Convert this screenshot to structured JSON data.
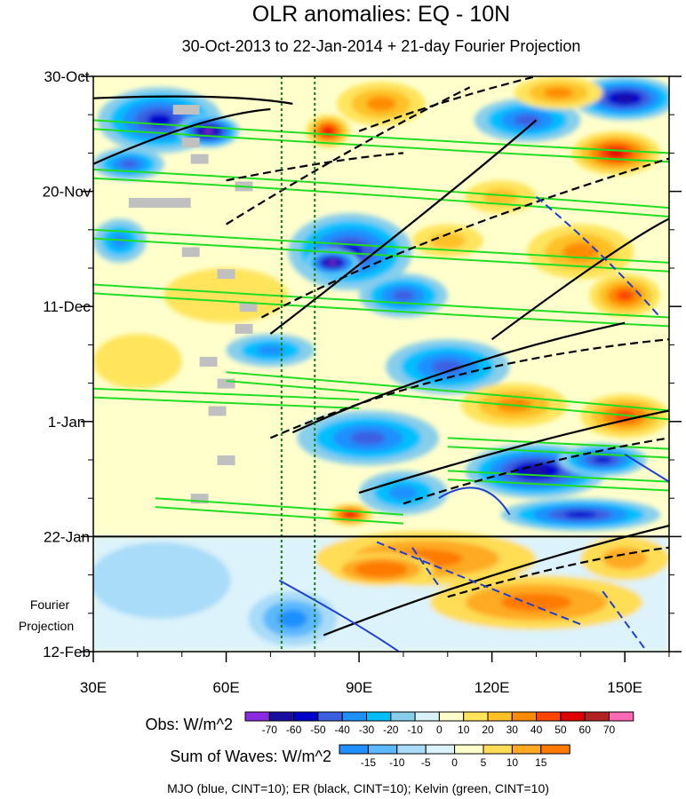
{
  "chart_data": {
    "type": "heatmap",
    "title": "OLR anomalies: EQ - 10N",
    "subtitle": "30-Oct-2013 to 22-Jan-2014 + 21-day Fourier Projection",
    "x_ticks": [
      {
        "value": 30,
        "label": "30E"
      },
      {
        "value": 60,
        "label": "60E"
      },
      {
        "value": 90,
        "label": "90E"
      },
      {
        "value": 120,
        "label": "120E"
      },
      {
        "value": 150,
        "label": "150E"
      }
    ],
    "xlim": [
      30,
      160
    ],
    "y_ticks": [
      {
        "day": 0,
        "label": "30-Oct"
      },
      {
        "day": 21,
        "label": "20-Nov"
      },
      {
        "day": 42,
        "label": "11-Dec"
      },
      {
        "day": 63,
        "label": "1-Jan"
      },
      {
        "day": 84,
        "label": "22-Jan"
      },
      {
        "day": 105,
        "label": "12-Feb"
      }
    ],
    "observation_end_day": 84,
    "projection_label_line1": "Fourier",
    "projection_label_line2": "Projection",
    "reference_lines_longitude": [
      72.5,
      80
    ],
    "obs_colorbar": {
      "label": "Obs: W/m^2",
      "levels": [
        "-70",
        "-60",
        "-50",
        "-40",
        "-30",
        "-20",
        "-10",
        "0",
        "10",
        "20",
        "30",
        "40",
        "50",
        "60",
        "70"
      ],
      "colors": [
        "#8a2be2",
        "#1a0ea0",
        "#0000cd",
        "#3b5fe0",
        "#1e90ff",
        "#00bfff",
        "#87ceeb",
        "#d8f3f8",
        "#ffffcc",
        "#ffe45c",
        "#ffc125",
        "#ff8c00",
        "#ff4500",
        "#e00000",
        "#b22222",
        "#ff69b4"
      ]
    },
    "waves_colorbar": {
      "label": "Sum of Waves: W/m^2",
      "levels": [
        "-15",
        "-10",
        "-5",
        "0",
        "5",
        "10",
        "15"
      ],
      "colors": [
        "#1e90ff",
        "#5cb8ff",
        "#a8dcf8",
        "#dcf3fb",
        "#ffffcc",
        "#ffdd55",
        "#ffaa22",
        "#ff7a00"
      ]
    },
    "footer": "MJO (blue, CINT=10); ER (black, CINT=10); Kelvin (green, CINT=10)",
    "contour_legend": [
      {
        "wave": "MJO",
        "color": "#1f3fd0"
      },
      {
        "wave": "ER",
        "color": "#000000"
      },
      {
        "wave": "Kelvin",
        "color": "#22dd22"
      }
    ],
    "obs_features": [
      {
        "lon": 45,
        "day": 8,
        "rx": 14,
        "ry": 6,
        "level": -50
      },
      {
        "lon": 56,
        "day": 10,
        "rx": 7,
        "ry": 3,
        "level": -70
      },
      {
        "lon": 38,
        "day": 16,
        "rx": 8,
        "ry": 3,
        "level": -40
      },
      {
        "lon": 88,
        "day": 32,
        "rx": 14,
        "ry": 7,
        "level": -50
      },
      {
        "lon": 84,
        "day": 34,
        "rx": 6,
        "ry": 2.5,
        "level": -70
      },
      {
        "lon": 100,
        "day": 40,
        "rx": 10,
        "ry": 4,
        "level": -40
      },
      {
        "lon": 70,
        "day": 50,
        "rx": 10,
        "ry": 3,
        "level": -30
      },
      {
        "lon": 110,
        "day": 53,
        "rx": 14,
        "ry": 5,
        "level": -40
      },
      {
        "lon": 92,
        "day": 66,
        "rx": 16,
        "ry": 5,
        "level": -40
      },
      {
        "lon": 130,
        "day": 72,
        "rx": 16,
        "ry": 5,
        "level": -60
      },
      {
        "lon": 145,
        "day": 70,
        "rx": 10,
        "ry": 3,
        "level": -50
      },
      {
        "lon": 140,
        "day": 80,
        "rx": 18,
        "ry": 3,
        "level": -50
      },
      {
        "lon": 100,
        "day": 76,
        "rx": 10,
        "ry": 4,
        "level": -30
      },
      {
        "lon": 150,
        "day": 4,
        "rx": 12,
        "ry": 4,
        "level": -60
      },
      {
        "lon": 128,
        "day": 8,
        "rx": 12,
        "ry": 4,
        "level": -40
      },
      {
        "lon": 36,
        "day": 30,
        "rx": 6,
        "ry": 4,
        "level": -30
      },
      {
        "lon": 95,
        "day": 5,
        "rx": 10,
        "ry": 4,
        "level": 30
      },
      {
        "lon": 83,
        "day": 10,
        "rx": 5,
        "ry": 3,
        "level": 50
      },
      {
        "lon": 148,
        "day": 14,
        "rx": 10,
        "ry": 4,
        "level": 50
      },
      {
        "lon": 140,
        "day": 32,
        "rx": 12,
        "ry": 5,
        "level": 30
      },
      {
        "lon": 150,
        "day": 40,
        "rx": 8,
        "ry": 4,
        "level": 40
      },
      {
        "lon": 125,
        "day": 60,
        "rx": 12,
        "ry": 4,
        "level": 30
      },
      {
        "lon": 150,
        "day": 62,
        "rx": 10,
        "ry": 4,
        "level": 40
      },
      {
        "lon": 88,
        "day": 80,
        "rx": 5,
        "ry": 2,
        "level": 50
      },
      {
        "lon": 122,
        "day": 22,
        "rx": 8,
        "ry": 3,
        "level": 20
      },
      {
        "lon": 60,
        "day": 40,
        "rx": 14,
        "ry": 5,
        "level": 10
      },
      {
        "lon": 40,
        "day": 52,
        "rx": 10,
        "ry": 5,
        "level": 10
      },
      {
        "lon": 135,
        "day": 3,
        "rx": 10,
        "ry": 3,
        "level": 30
      },
      {
        "lon": 110,
        "day": 30,
        "rx": 8,
        "ry": 3,
        "level": 20
      }
    ],
    "proj_features": [
      {
        "lon": 105,
        "day": 88,
        "rx": 25,
        "ry": 5,
        "level": 15
      },
      {
        "lon": 130,
        "day": 96,
        "rx": 24,
        "ry": 5,
        "level": 15
      },
      {
        "lon": 95,
        "day": 90,
        "rx": 12,
        "ry": 3,
        "level": 20
      },
      {
        "lon": 75,
        "day": 99,
        "rx": 10,
        "ry": 5,
        "level": -15
      },
      {
        "lon": 45,
        "day": 92,
        "rx": 16,
        "ry": 7,
        "level": -5
      },
      {
        "lon": 150,
        "day": 88,
        "rx": 10,
        "ry": 4,
        "level": 10
      }
    ],
    "gray_missing": [
      {
        "lon": 48,
        "day": 6,
        "w": 6
      },
      {
        "lon": 50,
        "day": 12,
        "w": 4
      },
      {
        "lon": 52,
        "day": 15,
        "w": 4
      },
      {
        "lon": 38,
        "day": 23,
        "w": 14
      },
      {
        "lon": 62,
        "day": 20,
        "w": 4
      },
      {
        "lon": 50,
        "day": 32,
        "w": 4
      },
      {
        "lon": 58,
        "day": 36,
        "w": 4
      },
      {
        "lon": 63,
        "day": 42,
        "w": 4
      },
      {
        "lon": 62,
        "day": 46,
        "w": 4
      },
      {
        "lon": 54,
        "day": 52,
        "w": 4
      },
      {
        "lon": 58,
        "day": 56,
        "w": 4
      },
      {
        "lon": 56,
        "day": 61,
        "w": 4
      },
      {
        "lon": 58,
        "day": 70,
        "w": 4
      },
      {
        "lon": 52,
        "day": 77,
        "w": 4
      }
    ],
    "kelvin_bands": [
      [
        [
          30,
          8
        ],
        [
          110,
          12
        ],
        [
          160,
          14
        ]
      ],
      [
        [
          30,
          17
        ],
        [
          80,
          19
        ],
        [
          160,
          24
        ]
      ],
      [
        [
          30,
          28
        ],
        [
          100,
          31
        ],
        [
          160,
          34
        ]
      ],
      [
        [
          30,
          38
        ],
        [
          110,
          42
        ],
        [
          160,
          44
        ]
      ],
      [
        [
          60,
          54
        ],
        [
          120,
          58
        ],
        [
          160,
          61
        ]
      ],
      [
        [
          30,
          57
        ],
        [
          90,
          59
        ]
      ],
      [
        [
          44,
          77
        ],
        [
          100,
          80
        ]
      ],
      [
        [
          110,
          66
        ],
        [
          160,
          68
        ]
      ],
      [
        [
          110,
          72
        ],
        [
          160,
          74
        ]
      ]
    ],
    "er_solid": [
      [
        [
          30,
          16
        ],
        [
          55,
          7
        ],
        [
          70,
          6
        ]
      ],
      [
        [
          70,
          47
        ],
        [
          110,
          22
        ],
        [
          130,
          8
        ]
      ],
      [
        [
          120,
          48
        ],
        [
          150,
          30
        ],
        [
          160,
          26
        ]
      ],
      [
        [
          90,
          76
        ],
        [
          130,
          66
        ],
        [
          160,
          61
        ]
      ],
      [
        [
          82,
          102
        ],
        [
          120,
          90
        ],
        [
          160,
          82
        ]
      ],
      [
        [
          30,
          4
        ],
        [
          60,
          3
        ],
        [
          75,
          5
        ]
      ],
      [
        [
          75,
          65
        ],
        [
          110,
          52
        ],
        [
          150,
          45
        ]
      ]
    ],
    "er_dashed": [
      [
        [
          60,
          27
        ],
        [
          90,
          12
        ],
        [
          115,
          2
        ]
      ],
      [
        [
          68,
          44
        ],
        [
          100,
          30
        ],
        [
          160,
          15
        ]
      ],
      [
        [
          70,
          66
        ],
        [
          110,
          52
        ],
        [
          160,
          48
        ]
      ],
      [
        [
          100,
          78
        ],
        [
          130,
          70
        ],
        [
          160,
          66
        ]
      ],
      [
        [
          110,
          95
        ],
        [
          140,
          88
        ],
        [
          160,
          86
        ]
      ],
      [
        [
          90,
          10
        ],
        [
          110,
          4
        ],
        [
          130,
          0
        ]
      ],
      [
        [
          60,
          19
        ],
        [
          85,
          15
        ],
        [
          100,
          14
        ]
      ]
    ],
    "mjo_solid": [
      [
        [
          108,
          77
        ],
        [
          118,
          72
        ],
        [
          124,
          80
        ]
      ],
      [
        [
          72,
          92
        ],
        [
          90,
          100
        ],
        [
          99,
          105
        ]
      ],
      [
        [
          150,
          69
        ],
        [
          160,
          74
        ]
      ]
    ],
    "mjo_dashed": [
      [
        [
          130,
          22
        ],
        [
          145,
          32
        ],
        [
          158,
          44
        ]
      ],
      [
        [
          94,
          85
        ],
        [
          115,
          92
        ],
        [
          140,
          100
        ]
      ],
      [
        [
          145,
          94
        ],
        [
          155,
          105
        ]
      ],
      [
        [
          102,
          86
        ],
        [
          108,
          93
        ]
      ]
    ]
  }
}
